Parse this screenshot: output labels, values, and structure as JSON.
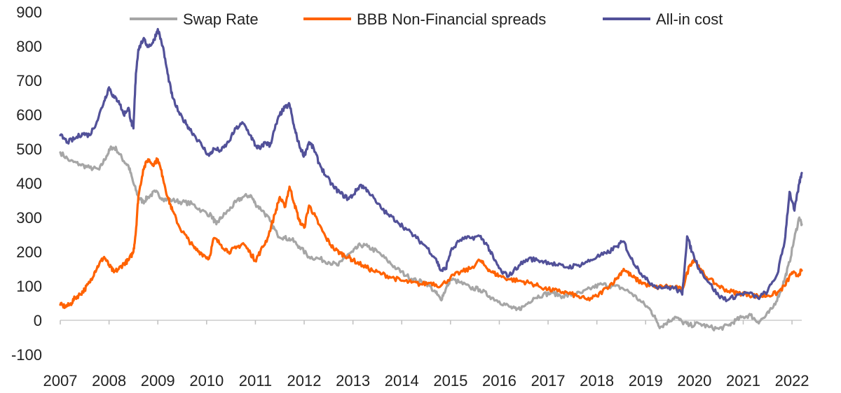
{
  "chart_data": {
    "type": "line",
    "title": "",
    "xlabel": "",
    "ylabel": "",
    "ylim": [
      -100,
      900
    ],
    "yticks": [
      -100,
      0,
      100,
      200,
      300,
      400,
      500,
      600,
      700,
      800,
      900
    ],
    "xlim": [
      2007.0,
      2022.2
    ],
    "xticks": [
      "2007",
      "2008",
      "2009",
      "2010",
      "2011",
      "2012",
      "2013",
      "2014",
      "2015",
      "2016",
      "2017",
      "2018",
      "2019",
      "2020",
      "2021",
      "2022"
    ],
    "grid": false,
    "legend_position": "top",
    "series": [
      {
        "name": "Swap Rate",
        "color": "#a6a6a6",
        "points": [
          [
            2007.0,
            490
          ],
          [
            2007.2,
            465
          ],
          [
            2007.4,
            455
          ],
          [
            2007.6,
            445
          ],
          [
            2007.8,
            440
          ],
          [
            2007.95,
            480
          ],
          [
            2008.05,
            505
          ],
          [
            2008.15,
            500
          ],
          [
            2008.3,
            465
          ],
          [
            2008.4,
            450
          ],
          [
            2008.5,
            400
          ],
          [
            2008.6,
            360
          ],
          [
            2008.7,
            345
          ],
          [
            2008.8,
            360
          ],
          [
            2008.95,
            375
          ],
          [
            2009.1,
            355
          ],
          [
            2009.3,
            350
          ],
          [
            2009.5,
            345
          ],
          [
            2009.7,
            340
          ],
          [
            2009.9,
            320
          ],
          [
            2010.1,
            305
          ],
          [
            2010.2,
            280
          ],
          [
            2010.3,
            300
          ],
          [
            2010.45,
            320
          ],
          [
            2010.6,
            345
          ],
          [
            2010.75,
            360
          ],
          [
            2010.9,
            365
          ],
          [
            2011.0,
            340
          ],
          [
            2011.15,
            320
          ],
          [
            2011.3,
            290
          ],
          [
            2011.45,
            250
          ],
          [
            2011.6,
            240
          ],
          [
            2011.75,
            235
          ],
          [
            2011.9,
            215
          ],
          [
            2012.1,
            185
          ],
          [
            2012.3,
            180
          ],
          [
            2012.5,
            170
          ],
          [
            2012.7,
            160
          ],
          [
            2012.8,
            180
          ],
          [
            2013.0,
            200
          ],
          [
            2013.15,
            220
          ],
          [
            2013.3,
            215
          ],
          [
            2013.5,
            200
          ],
          [
            2013.7,
            175
          ],
          [
            2013.9,
            150
          ],
          [
            2014.1,
            130
          ],
          [
            2014.3,
            115
          ],
          [
            2014.5,
            110
          ],
          [
            2014.7,
            80
          ],
          [
            2014.8,
            60
          ],
          [
            2014.9,
            90
          ],
          [
            2015.0,
            120
          ],
          [
            2015.2,
            110
          ],
          [
            2015.4,
            95
          ],
          [
            2015.6,
            90
          ],
          [
            2015.8,
            70
          ],
          [
            2016.0,
            55
          ],
          [
            2016.2,
            40
          ],
          [
            2016.35,
            30
          ],
          [
            2016.5,
            40
          ],
          [
            2016.7,
            65
          ],
          [
            2016.9,
            75
          ],
          [
            2017.1,
            80
          ],
          [
            2017.3,
            70
          ],
          [
            2017.5,
            75
          ],
          [
            2017.7,
            80
          ],
          [
            2017.9,
            95
          ],
          [
            2018.1,
            105
          ],
          [
            2018.3,
            100
          ],
          [
            2018.5,
            95
          ],
          [
            2018.7,
            80
          ],
          [
            2018.9,
            55
          ],
          [
            2019.1,
            30
          ],
          [
            2019.2,
            5
          ],
          [
            2019.3,
            -20
          ],
          [
            2019.45,
            -5
          ],
          [
            2019.6,
            10
          ],
          [
            2019.75,
            -5
          ],
          [
            2019.9,
            -15
          ],
          [
            2020.1,
            -10
          ],
          [
            2020.3,
            -20
          ],
          [
            2020.5,
            -25
          ],
          [
            2020.7,
            -15
          ],
          [
            2020.85,
            0
          ],
          [
            2021.0,
            10
          ],
          [
            2021.15,
            15
          ],
          [
            2021.3,
            -5
          ],
          [
            2021.45,
            10
          ],
          [
            2021.6,
            35
          ],
          [
            2021.75,
            80
          ],
          [
            2021.85,
            120
          ],
          [
            2021.95,
            170
          ],
          [
            2022.05,
            240
          ],
          [
            2022.15,
            300
          ],
          [
            2022.2,
            280
          ]
        ]
      },
      {
        "name": "BBB Non-Financial spreads",
        "color": "#ff6200",
        "points": [
          [
            2007.0,
            45
          ],
          [
            2007.1,
            40
          ],
          [
            2007.2,
            45
          ],
          [
            2007.3,
            65
          ],
          [
            2007.4,
            75
          ],
          [
            2007.5,
            90
          ],
          [
            2007.6,
            110
          ],
          [
            2007.7,
            140
          ],
          [
            2007.8,
            165
          ],
          [
            2007.9,
            185
          ],
          [
            2008.0,
            160
          ],
          [
            2008.1,
            140
          ],
          [
            2008.2,
            150
          ],
          [
            2008.3,
            165
          ],
          [
            2008.4,
            175
          ],
          [
            2008.5,
            200
          ],
          [
            2008.55,
            260
          ],
          [
            2008.6,
            360
          ],
          [
            2008.7,
            440
          ],
          [
            2008.8,
            470
          ],
          [
            2008.9,
            455
          ],
          [
            2009.0,
            470
          ],
          [
            2009.1,
            420
          ],
          [
            2009.2,
            360
          ],
          [
            2009.3,
            320
          ],
          [
            2009.45,
            270
          ],
          [
            2009.6,
            240
          ],
          [
            2009.75,
            210
          ],
          [
            2009.9,
            195
          ],
          [
            2010.05,
            180
          ],
          [
            2010.15,
            240
          ],
          [
            2010.3,
            220
          ],
          [
            2010.45,
            200
          ],
          [
            2010.6,
            210
          ],
          [
            2010.75,
            225
          ],
          [
            2010.9,
            195
          ],
          [
            2011.0,
            175
          ],
          [
            2011.1,
            200
          ],
          [
            2011.25,
            240
          ],
          [
            2011.4,
            310
          ],
          [
            2011.5,
            360
          ],
          [
            2011.6,
            330
          ],
          [
            2011.7,
            390
          ],
          [
            2011.8,
            340
          ],
          [
            2011.9,
            290
          ],
          [
            2012.0,
            270
          ],
          [
            2012.1,
            335
          ],
          [
            2012.2,
            310
          ],
          [
            2012.3,
            280
          ],
          [
            2012.45,
            240
          ],
          [
            2012.6,
            210
          ],
          [
            2012.75,
            195
          ],
          [
            2012.9,
            185
          ],
          [
            2013.0,
            175
          ],
          [
            2013.2,
            160
          ],
          [
            2013.4,
            145
          ],
          [
            2013.6,
            135
          ],
          [
            2013.8,
            125
          ],
          [
            2014.0,
            115
          ],
          [
            2014.2,
            110
          ],
          [
            2014.4,
            105
          ],
          [
            2014.6,
            110
          ],
          [
            2014.8,
            100
          ],
          [
            2015.0,
            125
          ],
          [
            2015.2,
            140
          ],
          [
            2015.4,
            150
          ],
          [
            2015.6,
            175
          ],
          [
            2015.7,
            160
          ],
          [
            2015.85,
            140
          ],
          [
            2016.0,
            130
          ],
          [
            2016.2,
            120
          ],
          [
            2016.4,
            115
          ],
          [
            2016.6,
            110
          ],
          [
            2016.8,
            100
          ],
          [
            2017.0,
            90
          ],
          [
            2017.2,
            85
          ],
          [
            2017.4,
            80
          ],
          [
            2017.6,
            70
          ],
          [
            2017.8,
            60
          ],
          [
            2018.0,
            70
          ],
          [
            2018.2,
            95
          ],
          [
            2018.4,
            120
          ],
          [
            2018.55,
            150
          ],
          [
            2018.7,
            130
          ],
          [
            2018.85,
            115
          ],
          [
            2019.0,
            105
          ],
          [
            2019.2,
            95
          ],
          [
            2019.4,
            100
          ],
          [
            2019.6,
            95
          ],
          [
            2019.75,
            90
          ],
          [
            2019.9,
            160
          ],
          [
            2020.0,
            180
          ],
          [
            2020.1,
            150
          ],
          [
            2020.3,
            120
          ],
          [
            2020.5,
            100
          ],
          [
            2020.7,
            85
          ],
          [
            2020.9,
            80
          ],
          [
            2021.1,
            75
          ],
          [
            2021.3,
            70
          ],
          [
            2021.5,
            72
          ],
          [
            2021.7,
            80
          ],
          [
            2021.85,
            100
          ],
          [
            2022.0,
            140
          ],
          [
            2022.1,
            130
          ],
          [
            2022.2,
            145
          ]
        ]
      },
      {
        "name": "All-in cost",
        "color": "#525199",
        "points": [
          [
            2007.0,
            540
          ],
          [
            2007.15,
            520
          ],
          [
            2007.3,
            530
          ],
          [
            2007.45,
            545
          ],
          [
            2007.6,
            540
          ],
          [
            2007.75,
            580
          ],
          [
            2007.9,
            640
          ],
          [
            2008.0,
            680
          ],
          [
            2008.1,
            650
          ],
          [
            2008.2,
            640
          ],
          [
            2008.3,
            600
          ],
          [
            2008.4,
            620
          ],
          [
            2008.45,
            580
          ],
          [
            2008.5,
            560
          ],
          [
            2008.55,
            720
          ],
          [
            2008.6,
            790
          ],
          [
            2008.7,
            820
          ],
          [
            2008.8,
            800
          ],
          [
            2008.9,
            810
          ],
          [
            2009.0,
            850
          ],
          [
            2009.1,
            800
          ],
          [
            2009.2,
            720
          ],
          [
            2009.3,
            650
          ],
          [
            2009.45,
            600
          ],
          [
            2009.6,
            570
          ],
          [
            2009.75,
            540
          ],
          [
            2009.9,
            510
          ],
          [
            2010.05,
            480
          ],
          [
            2010.15,
            500
          ],
          [
            2010.3,
            495
          ],
          [
            2010.45,
            520
          ],
          [
            2010.6,
            560
          ],
          [
            2010.75,
            575
          ],
          [
            2010.9,
            540
          ],
          [
            2011.0,
            510
          ],
          [
            2011.1,
            500
          ],
          [
            2011.2,
            520
          ],
          [
            2011.3,
            510
          ],
          [
            2011.4,
            560
          ],
          [
            2011.5,
            600
          ],
          [
            2011.6,
            620
          ],
          [
            2011.7,
            630
          ],
          [
            2011.8,
            560
          ],
          [
            2011.9,
            510
          ],
          [
            2012.0,
            480
          ],
          [
            2012.1,
            520
          ],
          [
            2012.2,
            500
          ],
          [
            2012.3,
            460
          ],
          [
            2012.45,
            420
          ],
          [
            2012.6,
            390
          ],
          [
            2012.75,
            370
          ],
          [
            2012.9,
            355
          ],
          [
            2013.0,
            365
          ],
          [
            2013.15,
            395
          ],
          [
            2013.3,
            380
          ],
          [
            2013.5,
            340
          ],
          [
            2013.7,
            310
          ],
          [
            2013.9,
            290
          ],
          [
            2014.1,
            265
          ],
          [
            2014.3,
            240
          ],
          [
            2014.5,
            215
          ],
          [
            2014.7,
            180
          ],
          [
            2014.8,
            145
          ],
          [
            2014.9,
            150
          ],
          [
            2015.0,
            200
          ],
          [
            2015.2,
            235
          ],
          [
            2015.4,
            240
          ],
          [
            2015.6,
            245
          ],
          [
            2015.75,
            220
          ],
          [
            2015.9,
            175
          ],
          [
            2016.05,
            140
          ],
          [
            2016.2,
            130
          ],
          [
            2016.4,
            160
          ],
          [
            2016.6,
            180
          ],
          [
            2016.8,
            175
          ],
          [
            2017.0,
            170
          ],
          [
            2017.2,
            160
          ],
          [
            2017.4,
            155
          ],
          [
            2017.6,
            160
          ],
          [
            2017.8,
            170
          ],
          [
            2018.0,
            185
          ],
          [
            2018.2,
            195
          ],
          [
            2018.4,
            215
          ],
          [
            2018.55,
            230
          ],
          [
            2018.7,
            180
          ],
          [
            2018.85,
            150
          ],
          [
            2019.0,
            120
          ],
          [
            2019.2,
            100
          ],
          [
            2019.4,
            95
          ],
          [
            2019.6,
            95
          ],
          [
            2019.75,
            75
          ],
          [
            2019.85,
            245
          ],
          [
            2019.95,
            200
          ],
          [
            2020.1,
            150
          ],
          [
            2020.3,
            110
          ],
          [
            2020.5,
            70
          ],
          [
            2020.7,
            60
          ],
          [
            2020.9,
            75
          ],
          [
            2021.1,
            80
          ],
          [
            2021.3,
            65
          ],
          [
            2021.5,
            85
          ],
          [
            2021.7,
            135
          ],
          [
            2021.85,
            230
          ],
          [
            2021.95,
            375
          ],
          [
            2022.05,
            320
          ],
          [
            2022.15,
            400
          ],
          [
            2022.2,
            430
          ]
        ]
      }
    ]
  }
}
